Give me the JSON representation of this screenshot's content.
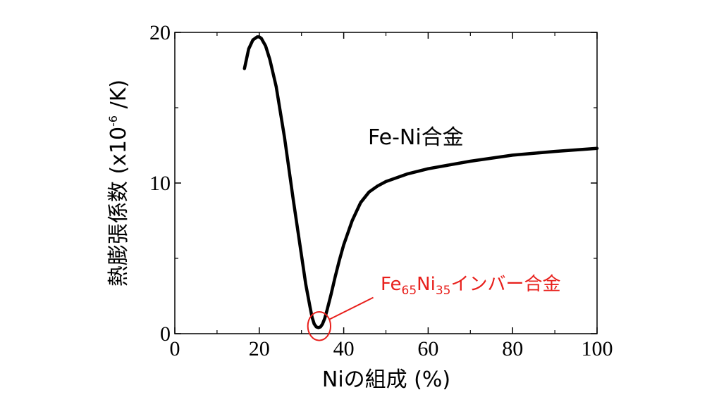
{
  "chart_data": {
    "type": "line",
    "xlabel": "Niの組成 (%)",
    "ylabel": {
      "main": "熱膨張係数 (x10",
      "exponent": "-6",
      "unit": " /K)"
    },
    "xlim": [
      0,
      100
    ],
    "ylim": [
      0,
      20
    ],
    "x_ticks": [
      0,
      20,
      40,
      60,
      80,
      100
    ],
    "y_ticks": [
      0,
      10,
      20
    ],
    "grid": false,
    "series": [
      {
        "label": "Fe-Ni合金",
        "color": "#000000",
        "x": [
          16.5,
          17.5,
          18.5,
          19.5,
          20.0,
          20.5,
          21.5,
          22.5,
          24.0,
          26.0,
          28.0,
          30.0,
          31.0,
          32.0,
          32.5,
          33.0,
          33.5,
          34.0,
          34.5,
          35.0,
          35.5,
          36.0,
          37.0,
          38.0,
          39.0,
          40.0,
          42.0,
          44.0,
          46.0,
          48.0,
          50.0,
          55.0,
          60.0,
          65.0,
          70.0,
          80.0,
          90.0,
          100.0
        ],
        "y": [
          17.6,
          18.9,
          19.5,
          19.7,
          19.7,
          19.6,
          19.1,
          18.2,
          16.4,
          13.0,
          9.0,
          5.2,
          3.3,
          1.8,
          1.1,
          0.65,
          0.45,
          0.4,
          0.45,
          0.65,
          1.0,
          1.5,
          2.6,
          3.8,
          4.9,
          5.9,
          7.5,
          8.7,
          9.4,
          9.8,
          10.1,
          10.6,
          10.95,
          11.2,
          11.45,
          11.85,
          12.1,
          12.3
        ]
      }
    ],
    "annotation": {
      "label_parts": [
        {
          "text": "Fe",
          "sub": false
        },
        {
          "text": "65",
          "sub": true
        },
        {
          "text": "Ni",
          "sub": false
        },
        {
          "text": "35",
          "sub": true
        },
        {
          "text": "インバー合金",
          "sub": false
        }
      ],
      "color": "#e8201c",
      "circle_at": [
        34.2,
        0.5
      ],
      "circle_radius_units": [
        2.7,
        0.95
      ],
      "line_to": [
        47,
        2.4
      ]
    }
  }
}
